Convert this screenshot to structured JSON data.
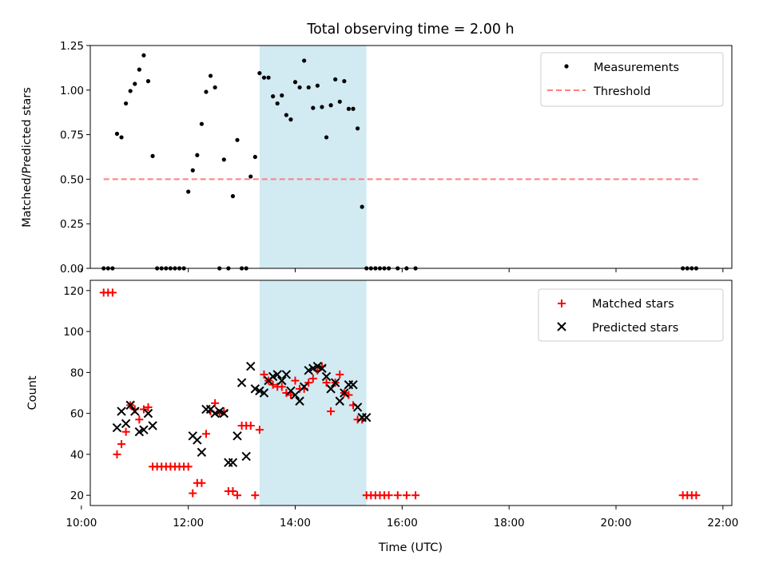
{
  "chart_data": [
    {
      "type": "scatter",
      "title": "Total observing time = 2.00 h",
      "ylabel": "Matched/Predicted stars",
      "xlabel": "",
      "xlim": [
        "10:10",
        "22:10"
      ],
      "ylim": [
        0,
        1.25
      ],
      "yticks": [
        "0.00",
        "0.25",
        "0.50",
        "0.75",
        "1.00",
        "1.25"
      ],
      "legend_placement": "top-right",
      "highlight_span": {
        "start": "13:20",
        "end": "15:20",
        "color": "#add8e6"
      },
      "series": [
        {
          "name": "Measurements",
          "color": "#000000",
          "x": [
            "10:25",
            "10:30",
            "10:35",
            "10:40",
            "10:45",
            "10:50",
            "10:55",
            "11:00",
            "11:05",
            "11:10",
            "11:15",
            "11:20",
            "11:25",
            "11:30",
            "11:35",
            "11:40",
            "11:45",
            "11:50",
            "11:55",
            "12:00",
            "12:05",
            "12:10",
            "12:15",
            "12:20",
            "12:25",
            "12:30",
            "12:35",
            "12:40",
            "12:45",
            "12:50",
            "12:55",
            "13:00",
            "13:05",
            "13:10",
            "13:15",
            "13:20",
            "13:25",
            "13:30",
            "13:35",
            "13:40",
            "13:45",
            "13:50",
            "13:55",
            "14:00",
            "14:05",
            "14:10",
            "14:15",
            "14:20",
            "14:25",
            "14:30",
            "14:35",
            "14:40",
            "14:45",
            "14:50",
            "14:55",
            "15:00",
            "15:05",
            "15:10",
            "15:15",
            "15:20",
            "15:25",
            "15:30",
            "15:35",
            "15:40",
            "15:45",
            "15:55",
            "16:05",
            "16:15",
            "21:15",
            "21:20",
            "21:25",
            "21:30"
          ],
          "y": [
            0,
            0,
            0,
            0.755,
            0.735,
            0.925,
            0.995,
            1.035,
            1.115,
            1.195,
            1.05,
            0.63,
            0,
            0,
            0,
            0,
            0,
            0,
            0,
            0.43,
            0.55,
            0.635,
            0.81,
            0.99,
            1.08,
            1.015,
            0,
            0.61,
            0,
            0.405,
            0.72,
            0,
            0,
            0.515,
            0.625,
            1.095,
            1.07,
            1.07,
            0.965,
            0.925,
            0.97,
            0.86,
            0.835,
            1.045,
            1.015,
            1.165,
            1.015,
            0.9,
            1.025,
            0.905,
            0.735,
            0.915,
            1.06,
            0.935,
            1.05,
            0.895,
            0.895,
            0.785,
            0.345,
            0,
            0,
            0,
            0,
            0,
            0,
            0,
            0,
            0,
            0,
            0,
            0,
            0
          ]
        },
        {
          "name": "Threshold",
          "color": "#ff7f7f",
          "style": "dashed",
          "x": [
            "10:25",
            "21:35"
          ],
          "y": [
            0.5,
            0.5
          ]
        }
      ]
    },
    {
      "type": "scatter",
      "title": "",
      "ylabel": "Count",
      "xlabel": "Time (UTC)",
      "xlim": [
        "10:10",
        "22:10"
      ],
      "ylim": [
        15,
        125
      ],
      "yticks": [
        "20",
        "40",
        "60",
        "80",
        "100",
        "120"
      ],
      "xticks": [
        "10:00",
        "12:00",
        "14:00",
        "16:00",
        "18:00",
        "20:00",
        "22:00"
      ],
      "legend_placement": "top-right",
      "highlight_span": {
        "start": "13:20",
        "end": "15:20",
        "color": "#add8e6"
      },
      "series": [
        {
          "name": "Matched stars",
          "marker": "+",
          "color": "#ff0000",
          "x": [
            "10:25",
            "10:30",
            "10:35",
            "10:40",
            "10:45",
            "10:50",
            "10:55",
            "11:00",
            "11:05",
            "11:10",
            "11:15",
            "11:20",
            "11:25",
            "11:30",
            "11:35",
            "11:40",
            "11:45",
            "11:50",
            "11:55",
            "12:00",
            "12:05",
            "12:10",
            "12:15",
            "12:20",
            "12:25",
            "12:30",
            "12:35",
            "12:40",
            "12:45",
            "12:50",
            "12:55",
            "13:00",
            "13:05",
            "13:10",
            "13:15",
            "13:20",
            "13:25",
            "13:30",
            "13:35",
            "13:40",
            "13:45",
            "13:50",
            "13:55",
            "14:00",
            "14:05",
            "14:10",
            "14:15",
            "14:20",
            "14:25",
            "14:30",
            "14:35",
            "14:40",
            "14:45",
            "14:50",
            "14:55",
            "15:00",
            "15:05",
            "15:10",
            "15:15",
            "15:20",
            "15:25",
            "15:30",
            "15:35",
            "15:40",
            "15:45",
            "15:55",
            "16:05",
            "16:15",
            "21:15",
            "21:20",
            "21:25",
            "21:30"
          ],
          "y": [
            119,
            119,
            119,
            40,
            45,
            51,
            64,
            62,
            57,
            62,
            63,
            34,
            34,
            34,
            34,
            34,
            34,
            34,
            34,
            34,
            21,
            26,
            26,
            50,
            61,
            65,
            60,
            61,
            22,
            22,
            20,
            54,
            54,
            54,
            20,
            52,
            79,
            76,
            74,
            73,
            73,
            70,
            69,
            76,
            72,
            72,
            75,
            77,
            81,
            83,
            75,
            61,
            75,
            79,
            70,
            69,
            64,
            57,
            57,
            20,
            20,
            20,
            20,
            20,
            20,
            20,
            20,
            20,
            20,
            20,
            20,
            20
          ]
        },
        {
          "name": "Predicted stars",
          "marker": "x",
          "color": "#000000",
          "x": [
            "10:40",
            "10:45",
            "10:50",
            "10:55",
            "11:00",
            "11:05",
            "11:10",
            "11:15",
            "11:20",
            "12:05",
            "12:10",
            "12:15",
            "12:20",
            "12:25",
            "12:30",
            "12:35",
            "12:40",
            "12:45",
            "12:50",
            "12:55",
            "13:00",
            "13:05",
            "13:10",
            "13:15",
            "13:20",
            "13:25",
            "13:30",
            "13:35",
            "13:40",
            "13:45",
            "13:50",
            "13:55",
            "14:00",
            "14:05",
            "14:10",
            "14:15",
            "14:20",
            "14:25",
            "14:30",
            "14:35",
            "14:40",
            "14:45",
            "14:50",
            "14:55",
            "15:00",
            "15:05",
            "15:10",
            "15:15",
            "15:20"
          ],
          "y": [
            53,
            61,
            55,
            64,
            61,
            51,
            52,
            60,
            54,
            49,
            47,
            41,
            62,
            62,
            60,
            61,
            60,
            36,
            36,
            49,
            75,
            39,
            83,
            72,
            71,
            70,
            76,
            78,
            79,
            76,
            79,
            71,
            69,
            66,
            73,
            81,
            82,
            83,
            82,
            78,
            72,
            75,
            66,
            70,
            74,
            74,
            63,
            58,
            58
          ]
        }
      ]
    }
  ]
}
